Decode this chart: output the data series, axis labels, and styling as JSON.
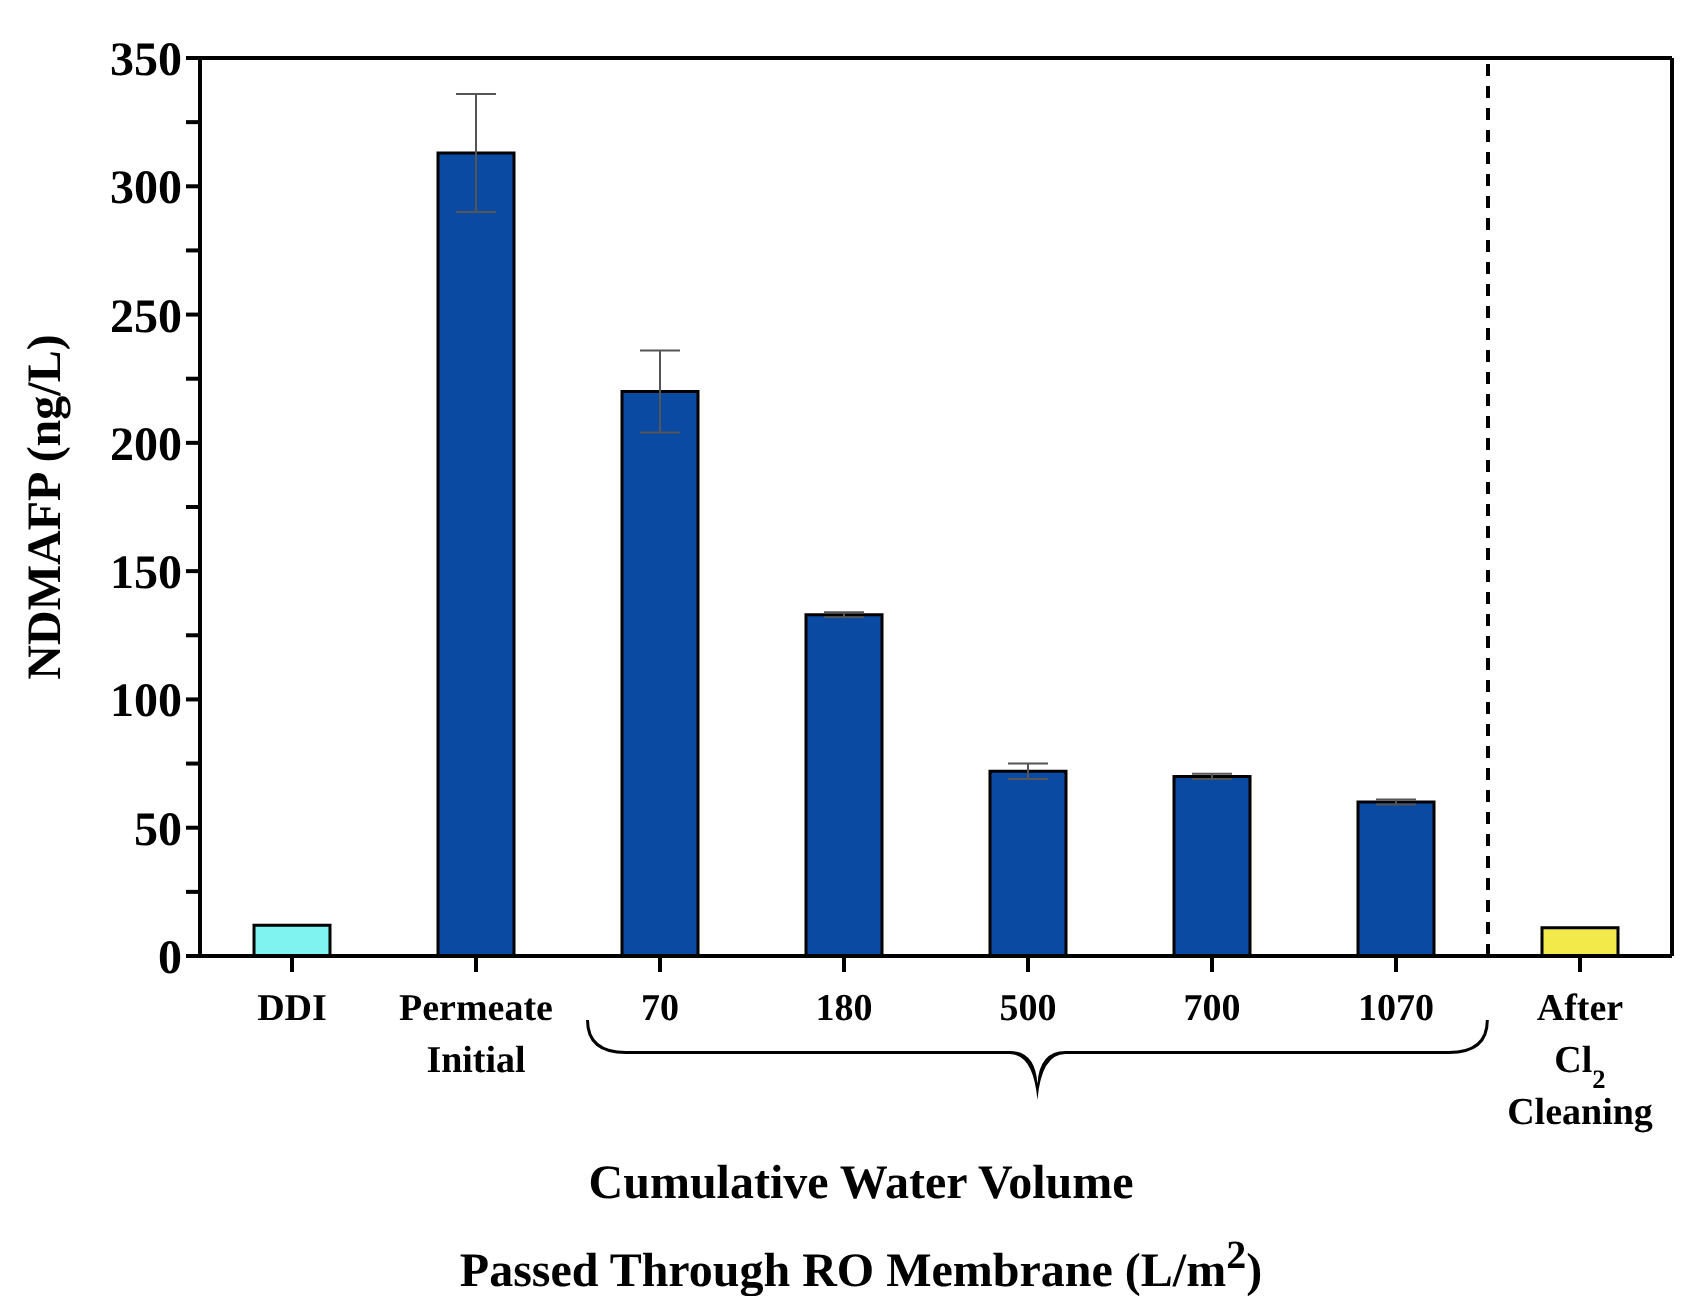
{
  "chart_data": {
    "type": "bar",
    "ylabel": "NDMAFP (ng/L)",
    "xlabel": "Cumulative Water Volume\nPassed Through RO Membrane (L/m$^{2}$)",
    "categories": [
      "DDI",
      "Permeate Initial",
      "70",
      "180",
      "500",
      "700",
      "1070",
      "After Cl$_{2}$ Cleaning"
    ],
    "values": [
      12,
      313,
      220,
      133,
      72,
      70,
      60,
      11
    ],
    "errors": [
      null,
      23,
      16,
      1,
      3,
      1,
      1,
      null
    ],
    "colors": [
      "#7ff3f0",
      "#0b4aa2",
      "#0b4aa2",
      "#0b4aa2",
      "#0b4aa2",
      "#0b4aa2",
      "#0b4aa2",
      "#f2e94a"
    ],
    "ylim": [
      0,
      350
    ],
    "yticks": [
      0,
      {
        "value": 25,
        "label": null
      },
      50,
      {
        "value": 75,
        "label": null
      },
      100,
      {
        "value": 125,
        "label": null
      },
      150,
      {
        "value": 175,
        "label": null
      },
      200,
      {
        "value": 225,
        "label": null
      },
      250,
      {
        "value": 275,
        "label": null
      },
      300,
      {
        "value": 325,
        "label": null
      },
      350
    ]
  }
}
